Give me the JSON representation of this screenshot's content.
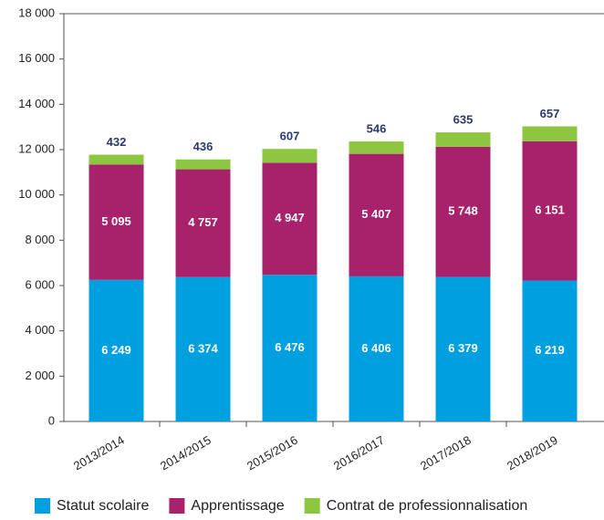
{
  "chart_data": {
    "type": "bar",
    "stacked": true,
    "categories": [
      "2013/2014",
      "2014/2015",
      "2015/2016",
      "2016/2017",
      "2017/2018",
      "2018/2019"
    ],
    "series": [
      {
        "name": "Statut scolaire",
        "color": "#00a0e0",
        "values": [
          6249,
          6374,
          6476,
          6406,
          6379,
          6219
        ],
        "value_labels": [
          "6 249",
          "6 374",
          "6 476",
          "6 406",
          "6 379",
          "6 219"
        ]
      },
      {
        "name": "Apprentissage",
        "color": "#a8216b",
        "values": [
          5095,
          4757,
          4947,
          5407,
          5748,
          6151
        ],
        "value_labels": [
          "5 095",
          "4 757",
          "4 947",
          "5 407",
          "5 748",
          "6 151"
        ]
      },
      {
        "name": "Contrat de professionnalisation",
        "color": "#8dc63f",
        "values": [
          432,
          436,
          607,
          546,
          635,
          657
        ]
      }
    ],
    "ylim": [
      0,
      18000
    ],
    "yticks": [
      0,
      {
        "value": 2000,
        "label": "2 000"
      },
      {
        "value": 4000,
        "label": "4 000"
      },
      {
        "value": 6000,
        "label": "6 000"
      },
      {
        "value": 8000,
        "label": "8 000"
      },
      {
        "value": 10000,
        "label": "10 000"
      },
      {
        "value": 12000,
        "label": "12 000"
      },
      {
        "value": 14000,
        "label": "14 000"
      },
      {
        "value": 16000,
        "label": "16 000"
      },
      {
        "value": 18000,
        "label": "18 000"
      }
    ],
    "grid": false,
    "legend": "bottom"
  }
}
